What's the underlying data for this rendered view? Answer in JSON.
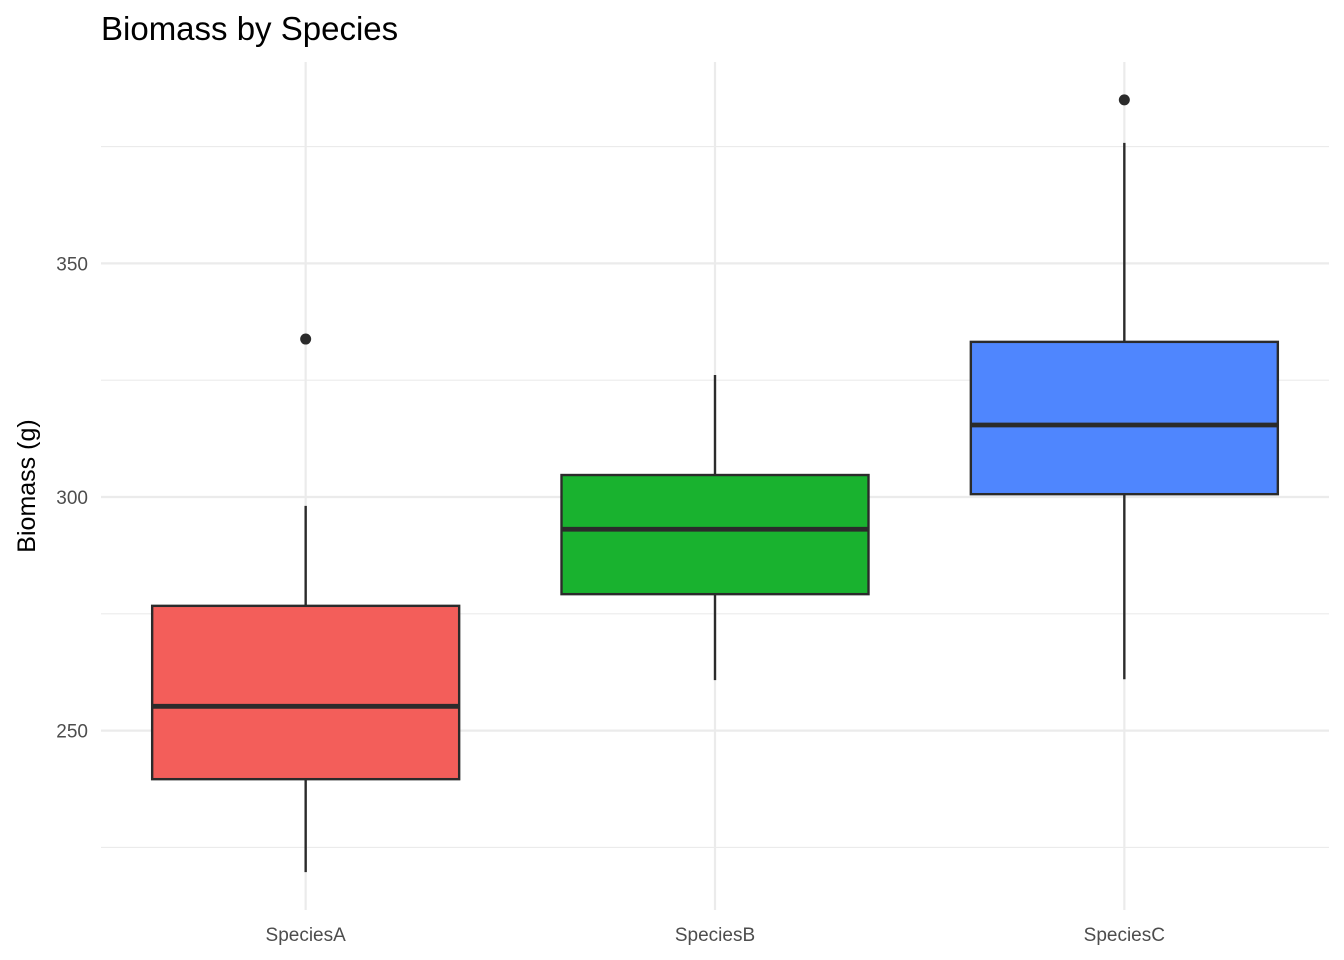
{
  "chart_data": {
    "type": "boxplot",
    "title": "Biomass by Species",
    "xlabel": "",
    "ylabel": "Biomass (g)",
    "ylim": [
      211.6,
      393.1
    ],
    "y_ticks": [
      250,
      300,
      350
    ],
    "y_minor_ticks": [
      225,
      275,
      325,
      375
    ],
    "grid": true,
    "legend": "none",
    "categories": [
      "SpeciesA",
      "SpeciesB",
      "SpeciesC"
    ],
    "series": [
      {
        "name": "SpeciesA",
        "color": "#F8766D",
        "whisker_low": 219.7,
        "q1": 239.6,
        "median": 255.2,
        "q3": 276.7,
        "whisker_high": 298.1,
        "outliers": [
          333.8
        ]
      },
      {
        "name": "SpeciesB",
        "color": "#00BA38",
        "whisker_low": 260.8,
        "q1": 279.2,
        "median": 293.1,
        "q3": 304.7,
        "whisker_high": 326.1,
        "outliers": []
      },
      {
        "name": "SpeciesC",
        "color": "#619CFF",
        "whisker_low": 261.0,
        "q1": 300.6,
        "median": 315.4,
        "q3": 333.2,
        "whisker_high": 375.8,
        "outliers": [
          385.0
        ]
      }
    ],
    "fill_colors_rendered": [
      "#f35e5a",
      "#19b22f",
      "#4f86fe"
    ]
  }
}
